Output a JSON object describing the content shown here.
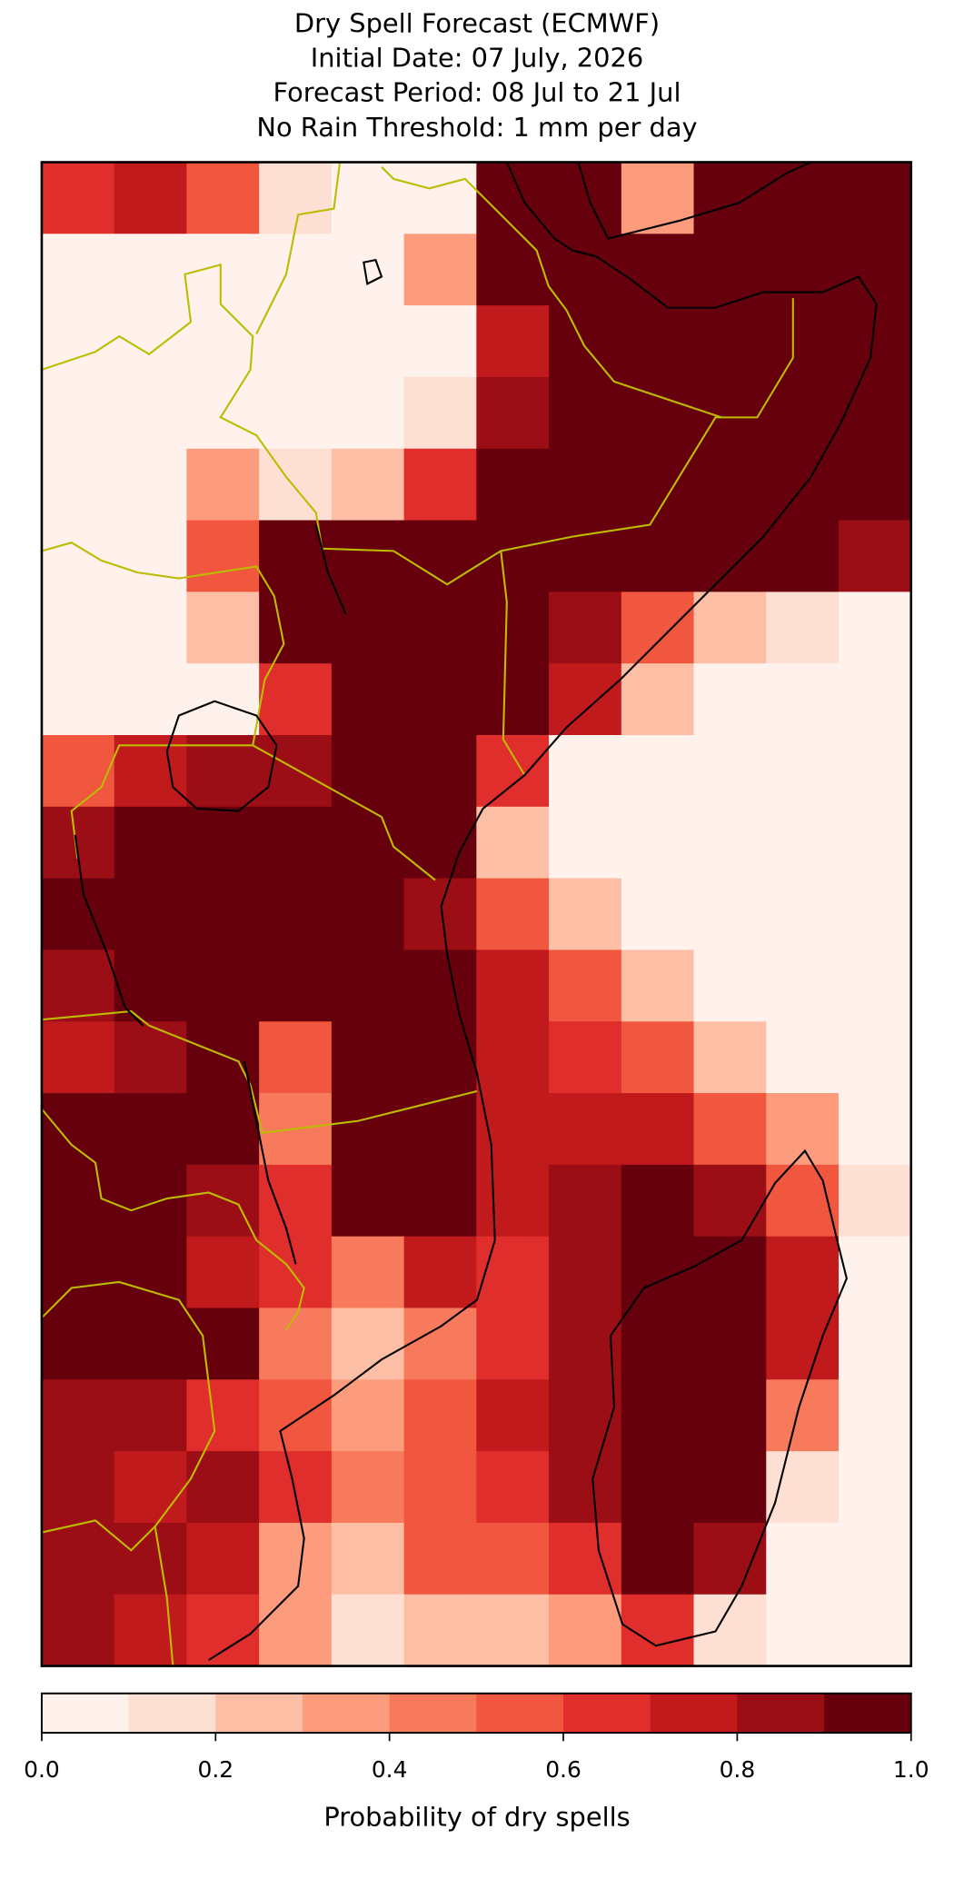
{
  "chart_data": {
    "type": "heatmap",
    "title": "Dry Spell Forecast (ECMWF)",
    "subtitle": [
      "Initial Date: 07 July, 2026",
      "Forecast Period: 08 Jul to 21 Jul",
      "No Rain Threshold: 1 mm per day"
    ],
    "values": [
      [
        0.6,
        0.7,
        0.5,
        0.1,
        0,
        0,
        1,
        1,
        0.3,
        1,
        1,
        1
      ],
      [
        0,
        0,
        0,
        0,
        0,
        0.3,
        1,
        1,
        1,
        1,
        1,
        1
      ],
      [
        0,
        0,
        0,
        0,
        0,
        0,
        0.7,
        1,
        1,
        1,
        1,
        1
      ],
      [
        0,
        0,
        0,
        0,
        0,
        0.1,
        0.8,
        1,
        1,
        1,
        1,
        1
      ],
      [
        0,
        0,
        0.3,
        0.1,
        0.2,
        0.6,
        1,
        1,
        1,
        1,
        1,
        1
      ],
      [
        0,
        0,
        0.5,
        1,
        1,
        1,
        1,
        1,
        1,
        1,
        0.9,
        0.8
      ],
      [
        0,
        0,
        0.2,
        1,
        1,
        1,
        1,
        0.8,
        0.5,
        0.2,
        0.1,
        0
      ],
      [
        0,
        0,
        0,
        0.6,
        0.9,
        1,
        1,
        0.7,
        0.2,
        0,
        0,
        0
      ],
      [
        0.5,
        0.7,
        0.8,
        0.8,
        1,
        1,
        0.6,
        0,
        0,
        0,
        0,
        0
      ],
      [
        0.8,
        0.9,
        1,
        1,
        1,
        1,
        0.2,
        0,
        0,
        0,
        0,
        0
      ],
      [
        0.9,
        1,
        1,
        1,
        1,
        0.8,
        0.5,
        0.2,
        0,
        0,
        0,
        0
      ],
      [
        0.8,
        1,
        1,
        0.9,
        1,
        1,
        0.7,
        0.5,
        0.2,
        0,
        0,
        0
      ],
      [
        0.7,
        0.8,
        0.9,
        0.5,
        0.9,
        1,
        0.7,
        0.6,
        0.5,
        0.2,
        0,
        0
      ],
      [
        0.9,
        1,
        1,
        0.4,
        1,
        1,
        0.7,
        0.7,
        0.7,
        0.5,
        0.3,
        0
      ],
      [
        0.9,
        0.9,
        0.8,
        0.6,
        0.9,
        1,
        0.7,
        0.8,
        1,
        0.8,
        0.5,
        0.1
      ],
      [
        1,
        0.9,
        0.7,
        0.6,
        0.4,
        0.7,
        0.6,
        0.8,
        1,
        1,
        0.7,
        0
      ],
      [
        1,
        1,
        0.9,
        0.4,
        0.2,
        0.4,
        0.6,
        0.8,
        1,
        1,
        0.7,
        0
      ],
      [
        0.8,
        0.8,
        0.6,
        0.5,
        0.3,
        0.5,
        0.7,
        0.8,
        1,
        0.9,
        0.4,
        0
      ],
      [
        0.8,
        0.7,
        0.8,
        0.6,
        0.4,
        0.5,
        0.6,
        0.8,
        1,
        0.9,
        0.1,
        0
      ],
      [
        0.8,
        0.8,
        0.7,
        0.3,
        0.2,
        0.5,
        0.5,
        0.6,
        1,
        0.8,
        0,
        0
      ],
      [
        0.8,
        0.7,
        0.6,
        0.3,
        0.1,
        0.2,
        0.2,
        0.3,
        0.6,
        0.1,
        0,
        0
      ]
    ],
    "colorbar": {
      "label": "Probability of dry spells",
      "lim": [
        0,
        1
      ],
      "ticks": [
        {
          "value": 0,
          "label": "0.0"
        },
        {
          "value": 0.2,
          "label": "0.2"
        },
        {
          "value": 0.4,
          "label": "0.4"
        },
        {
          "value": 0.6,
          "label": "0.6"
        },
        {
          "value": 0.8,
          "label": "0.8"
        },
        {
          "value": 1,
          "label": "1.0"
        }
      ],
      "colors": [
        "#fff1ec",
        "#fedfd4",
        "#fcbea5",
        "#fc9c7d",
        "#f87a5c",
        "#f0573e",
        "#df2e2b",
        "#c01a1d",
        "#9c0e15",
        "#67000d"
      ]
    }
  }
}
